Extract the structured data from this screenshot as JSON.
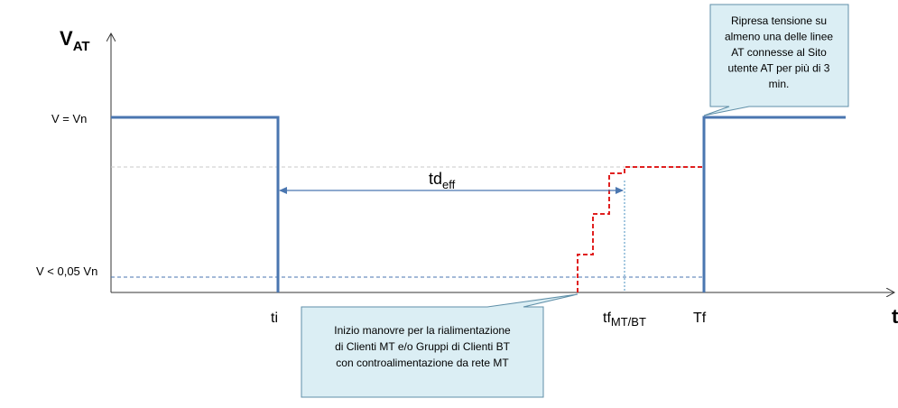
{
  "y_axis": {
    "main": "V",
    "sub": "AT"
  },
  "x_axis": "t",
  "levels": {
    "nominal": "V = Vn",
    "low": "V < 0,05 Vn"
  },
  "times": {
    "ti": "ti",
    "tf": {
      "main": "tf",
      "sub": "MT/BT"
    },
    "Tf": "Tf"
  },
  "duration": {
    "main": "td",
    "sub": "eff"
  },
  "callout_top": {
    "lines": [
      "Ripresa tensione su",
      "almeno una delle linee",
      "AT connesse al Sito",
      "utente AT per più di 3",
      "min."
    ]
  },
  "callout_bottom": {
    "lines": [
      "Inizio manovre per la rialimentazione",
      "di Clienti MT e/o Gruppi di Clienti BT",
      "con controalimentazione da rete MT"
    ]
  }
}
